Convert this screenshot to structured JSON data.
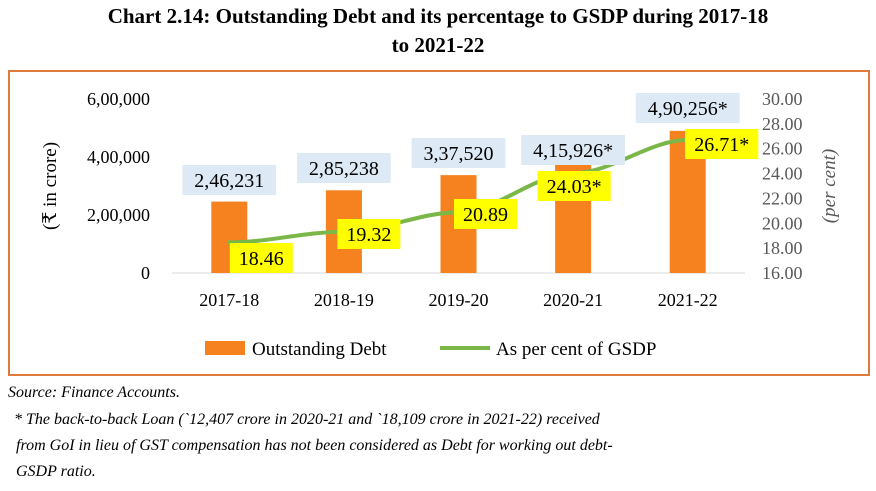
{
  "title_line1": "Chart 2.14: Outstanding Debt and its percentage to GSDP during 2017-18",
  "title_line2": "to 2021-22",
  "chart_data": {
    "type": "bar",
    "categories": [
      "2017-18",
      "2018-19",
      "2019-20",
      "2020-21",
      "2021-22"
    ],
    "series": [
      {
        "name": "Outstanding Debt",
        "type": "bar",
        "axis": "left",
        "values": [
          246231,
          285238,
          337520,
          415926,
          490256
        ],
        "labels": [
          "2,46,231",
          "2,85,238",
          "3,37,520",
          "4,15,926*",
          "4,90,256*"
        ],
        "color": "#f5821f"
      },
      {
        "name": "As per cent of GSDP",
        "type": "line",
        "axis": "right",
        "values": [
          18.46,
          19.32,
          20.89,
          24.03,
          26.71
        ],
        "labels": [
          "18.46",
          "19.32",
          "20.89",
          "24.03*",
          "26.71*"
        ],
        "color": "#7ab648"
      }
    ],
    "ylabel": "(₹ in crore)",
    "y2label": "(per cent)",
    "ylim": [
      0,
      600000
    ],
    "y2lim": [
      16,
      30
    ],
    "yticks": [
      0,
      200000,
      400000,
      600000
    ],
    "ytick_labels": [
      "0",
      "2,00,000",
      "4,00,000",
      "6,00,000"
    ],
    "y2ticks": [
      16,
      18,
      20,
      22,
      24,
      26,
      28,
      30
    ],
    "y2tick_labels": [
      "16.00",
      "18.00",
      "20.00",
      "22.00",
      "24.00",
      "26.00",
      "28.00",
      "30.00"
    ],
    "grid": false,
    "legend_position": "bottom",
    "bar_label_bg": "#dde9f5",
    "line_label_bg": "#ffff00",
    "border_color": "#e07a3c"
  },
  "footnotes": {
    "source": "Source: Finance Accounts.",
    "note_line1": "* The back-to-back Loan (`12,407 crore in 2020-21 and `18,109 crore in 2021-22) received",
    "note_line2": "from GoI in lieu of GST compensation has not been considered as Debt for working out debt-",
    "note_line3": "GSDP ratio."
  }
}
